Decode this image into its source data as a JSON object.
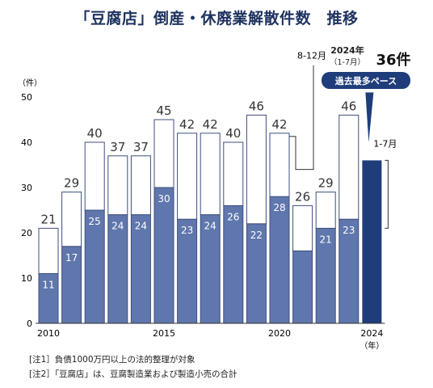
{
  "title": "「豆腐店」倒産・休廃業解散件数　推移",
  "notes": [
    "[注1］負債1000万円以上の法的整理が対象",
    "[注2］「豆腐店」は、豆腐製造業および製造小売の合計"
  ],
  "chart_data": {
    "type": "bar",
    "title": "「豆腐店」倒産・休廃業解散件数　推移",
    "ylabel": "（件）",
    "xlabel": "（年）",
    "ylim": [
      0,
      50
    ],
    "yticks": [
      0,
      10,
      20,
      30,
      40,
      50
    ],
    "x_tick_labels": [
      "2010",
      "2015",
      "2020",
      "2024"
    ],
    "categories": [
      "2010",
      "2011",
      "2012",
      "2013",
      "2014",
      "2015",
      "2016",
      "2017",
      "2018",
      "2019",
      "2020",
      "2021",
      "2022",
      "2023",
      "2024"
    ],
    "series": [
      {
        "name": "1-7月",
        "values": [
          11,
          17,
          25,
          24,
          24,
          30,
          23,
          24,
          26,
          22,
          28,
          16,
          21,
          23,
          36
        ],
        "color": "#5f77ad"
      },
      {
        "name": "8-12月",
        "values": [
          10,
          12,
          15,
          13,
          13,
          15,
          19,
          18,
          14,
          24,
          14,
          10,
          8,
          23,
          0
        ],
        "color": "#ffffff"
      }
    ],
    "total_labels": [
      21,
      29,
      40,
      37,
      37,
      45,
      42,
      42,
      40,
      46,
      42,
      26,
      29,
      46,
      null
    ],
    "inner_labels": [
      11,
      17,
      25,
      24,
      24,
      30,
      23,
      24,
      26,
      22,
      28,
      null,
      21,
      23,
      null
    ],
    "highlight": {
      "category": "2024",
      "color": "#1f3d7a",
      "year_label": "2024年",
      "period_label": "（1-7月）",
      "value_label": "36件",
      "badge": "過去最多ペース"
    },
    "callouts": [
      {
        "label": "8-12月",
        "target_series": "8-12月"
      },
      {
        "label": "1-7月",
        "target_series": "1-7月"
      }
    ],
    "grid": false,
    "legend": "none"
  }
}
